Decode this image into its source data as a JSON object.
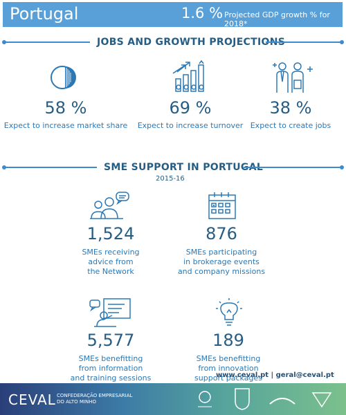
{
  "header": {
    "country": "Portugal",
    "gdp_value": "1.6 %",
    "gdp_label": "Projected GDP growth % for 2018*"
  },
  "jobs": {
    "title": "JOBS AND GROWTH PROJECTIONS",
    "items": [
      {
        "value": "58 %",
        "label": "Expect to increase market share",
        "icon": "pie-chart-icon"
      },
      {
        "value": "69 %",
        "label": "Expect to increase turnover",
        "icon": "growth-bars-icon"
      },
      {
        "value": "38 %",
        "label": "Expect to create jobs",
        "icon": "people-plus-icon"
      }
    ]
  },
  "sme": {
    "title": "SME SUPPORT IN PORTUGAL",
    "years": "2015-16",
    "items": [
      {
        "value": "1,524",
        "lines": [
          "SMEs receiving",
          "advice from",
          "the Network"
        ],
        "icon": "advice-people-icon"
      },
      {
        "value": "876",
        "lines": [
          "SMEs participating",
          "in brokerage events",
          "and company missions"
        ],
        "icon": "calendar-icon"
      },
      {
        "value": "5,577",
        "lines": [
          "SMEs benefitting",
          "from information",
          "and training sessions"
        ],
        "icon": "training-presentation-icon"
      },
      {
        "value": "189",
        "lines": [
          "SMEs benefitting",
          "from innovation",
          "support packages"
        ],
        "icon": "lightbulb-icon"
      }
    ]
  },
  "contact": {
    "email_line": "www.ceval.pt | geral@ceval.pt"
  },
  "footer": {
    "logo": "CEVAL",
    "org_line1": "CONFEDERAÇÃO EMPRESARIAL",
    "org_line2": "DO ALTO MINHO"
  },
  "colors": {
    "accent": "#5aa0d8",
    "dark": "#255d84",
    "text": "#2b78b5"
  }
}
